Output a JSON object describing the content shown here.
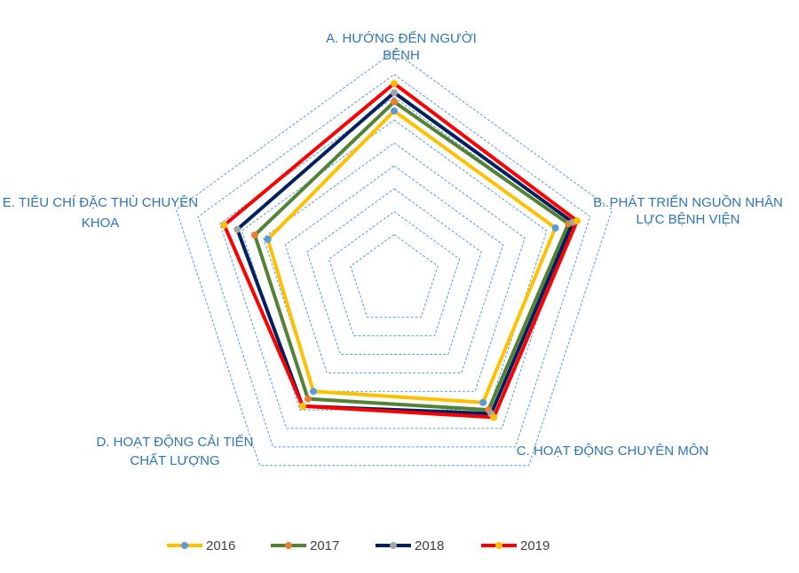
{
  "chart_data": {
    "type": "radar",
    "axes": [
      [
        "A. HƯỚNG ĐẾN NGƯỜI",
        "BỆNH"
      ],
      [
        "B. PHÁT TRIỂN NGUỒN NHÂN",
        "LỰC BỆNH VIỆN"
      ],
      [
        "C. HOẠT ĐỘNG CHUYÊN MÔN"
      ],
      [
        "D. HOẠT ĐỘNG CẢI TIẾN",
        "CHẤT LƯỢNG"
      ],
      [
        "E. TIÊU CHÍ ĐẶC THÙ CHUYÊN",
        "KHOA"
      ]
    ],
    "rmax": 5,
    "grid_levels": [
      1,
      1.5,
      2,
      2.5,
      3,
      3.5,
      4,
      4.5,
      5
    ],
    "legend_position": "bottom",
    "series": [
      {
        "name": "2016",
        "line_color": "#ffc000",
        "marker_color": "#5b9bd5",
        "values": [
          3.7,
          3.7,
          3.3,
          3.0,
          2.9
        ]
      },
      {
        "name": "2017",
        "line_color": "#548235",
        "marker_color": "#ed7d31",
        "values": [
          3.9,
          4.0,
          3.5,
          3.2,
          3.2
        ]
      },
      {
        "name": "2018",
        "line_color": "#002060",
        "marker_color": "#a5a5a5",
        "values": [
          4.1,
          4.1,
          3.6,
          3.4,
          3.6
        ]
      },
      {
        "name": "2019",
        "line_color": "#ff0000",
        "marker_color": "#ffc000",
        "values": [
          4.3,
          4.2,
          3.7,
          3.4,
          3.9
        ]
      }
    ]
  }
}
